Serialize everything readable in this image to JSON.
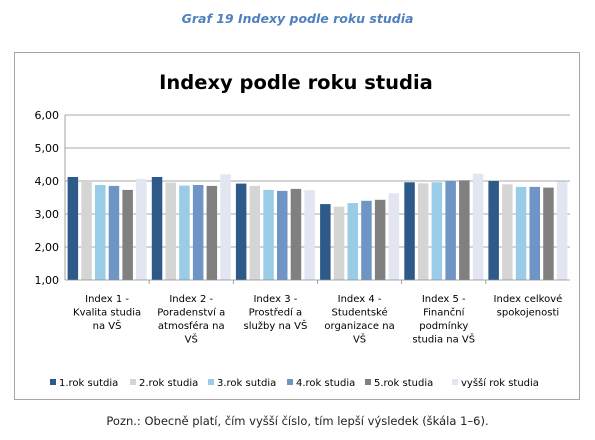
{
  "caption": "Graf 19 Indexy podle roku studia",
  "note": "Pozn.: Obecně platí, čím vyšší číslo, tím lepší výsledek (škála 1–6).",
  "chart_data": {
    "type": "bar",
    "title": "Indexy podle roku studia",
    "xlabel": "",
    "ylabel": "",
    "ylim": [
      1,
      6
    ],
    "yticks": [
      "1,00",
      "2,00",
      "3,00",
      "4,00",
      "5,00",
      "6,00"
    ],
    "grid": true,
    "legend_position": "bottom",
    "categories": [
      [
        "Index 1 -",
        "Kvalita studia",
        "na VŠ"
      ],
      [
        "Index 2 -",
        "Poradenství a",
        "atmosféra na",
        "VŠ"
      ],
      [
        "Index 3 -",
        "Prostředí a",
        "služby na VŠ"
      ],
      [
        "Index 4 -",
        "Studentské",
        "organizace na",
        "VŠ"
      ],
      [
        "Index 5 -",
        "Finanční",
        "podmínky",
        "studia na VŠ"
      ],
      [
        "Index celkové",
        "spokojenosti"
      ]
    ],
    "series": [
      {
        "name": "1.rok sutdia",
        "color": "#2e5a8a",
        "values": [
          4.12,
          4.12,
          3.92,
          3.3,
          3.96,
          4.0
        ]
      },
      {
        "name": "2.rok studia",
        "color": "#d5d5d5",
        "values": [
          4.0,
          3.95,
          3.85,
          3.22,
          3.93,
          3.9
        ]
      },
      {
        "name": "3.rok sutdia",
        "color": "#99cce6",
        "values": [
          3.88,
          3.86,
          3.73,
          3.33,
          3.96,
          3.82
        ]
      },
      {
        "name": "4.rok studia",
        "color": "#6f95c6",
        "values": [
          3.85,
          3.88,
          3.7,
          3.4,
          4.0,
          3.82
        ]
      },
      {
        "name": "5.rok studia",
        "color": "#808080",
        "values": [
          3.73,
          3.85,
          3.76,
          3.43,
          4.02,
          3.8
        ]
      },
      {
        "name": "vyšší rok studia",
        "color": "#e2e6f2",
        "values": [
          4.06,
          4.2,
          3.72,
          3.63,
          4.22,
          3.98
        ]
      }
    ]
  }
}
